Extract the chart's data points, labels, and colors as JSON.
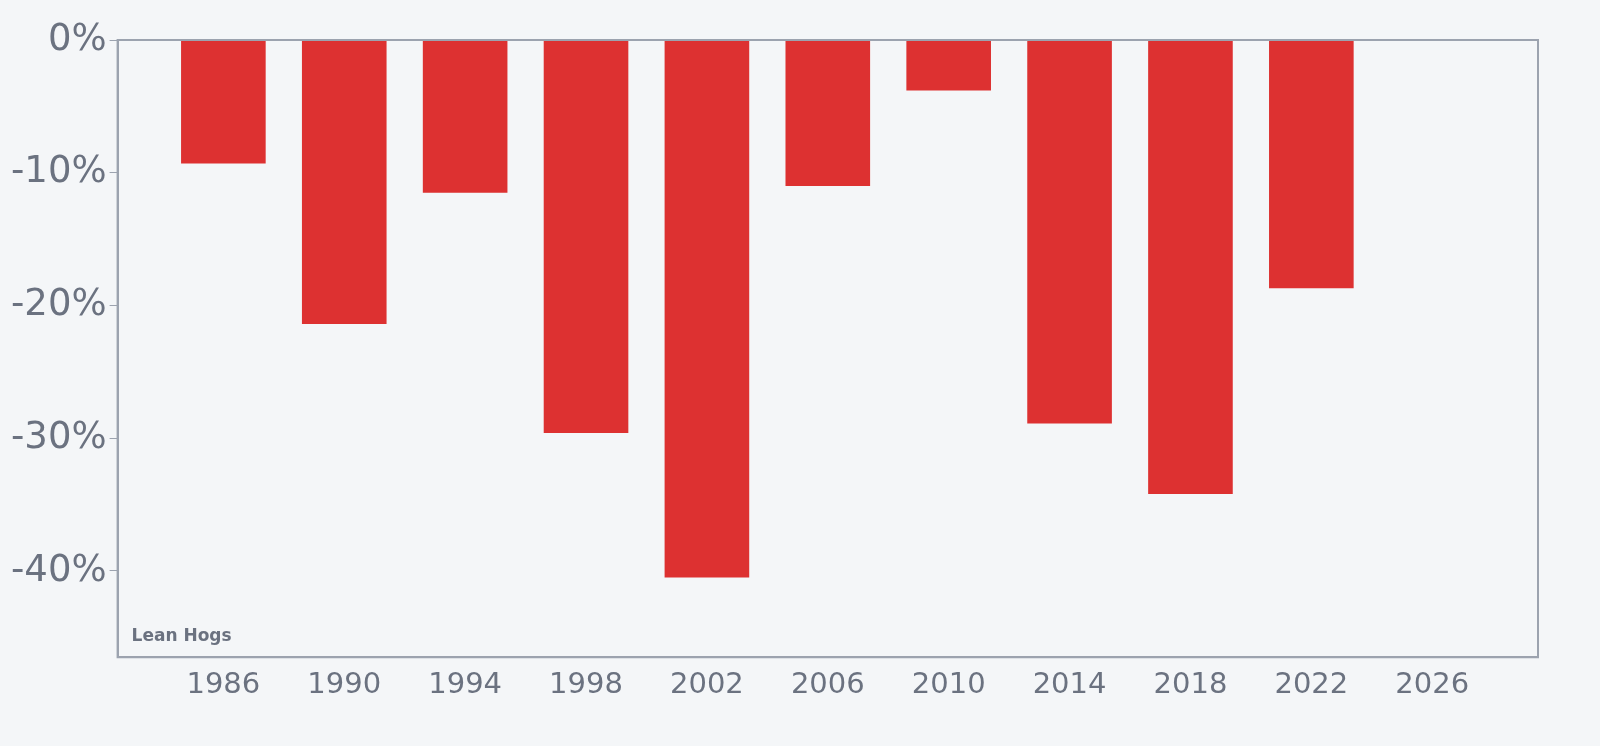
{
  "chart_data": {
    "type": "bar",
    "x": [
      1986,
      1990,
      1994,
      1998,
      2002,
      2006,
      2010,
      2014,
      2018,
      2022
    ],
    "values": [
      -9.3,
      -21.4,
      -11.5,
      -29.6,
      -40.5,
      -11.0,
      -3.8,
      -28.9,
      -34.2,
      -18.7
    ],
    "color": "#dd3131",
    "xlim": [
      1982.5,
      2029.5
    ],
    "xticks": [
      1986,
      1990,
      1994,
      1998,
      2002,
      2006,
      2010,
      2014,
      2018,
      2022,
      2026
    ],
    "ylim": [
      -46.5,
      0
    ],
    "yticks": [
      {
        "value": 0,
        "label": "0%"
      },
      {
        "value": -10,
        "label": "-10%"
      },
      {
        "value": -20,
        "label": "-20%"
      },
      {
        "value": -30,
        "label": "-30%"
      },
      {
        "value": -40,
        "label": "-40%"
      }
    ],
    "grid": false,
    "annotations": [
      "Lean Hogs"
    ]
  }
}
